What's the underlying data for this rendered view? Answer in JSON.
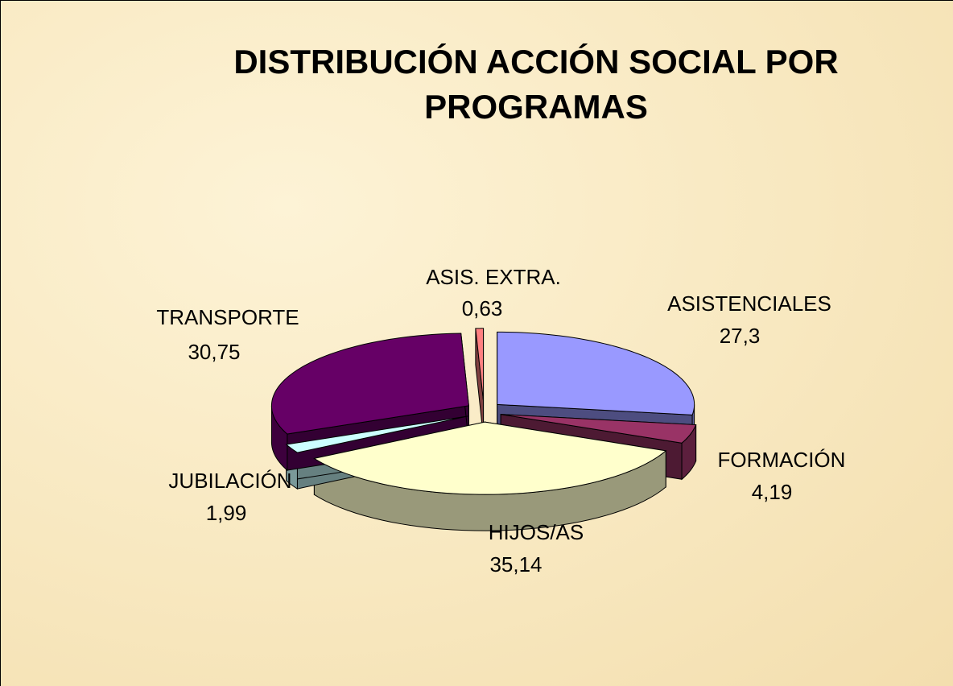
{
  "chart_data": {
    "type": "pie",
    "title": "DISTRIBUCIÓN ACCIÓN SOCIAL POR PROGRAMAS",
    "categories": [
      "ASISTENCIALES",
      "FORMACIÓN",
      "HIJOS/AS",
      "JUBILACIÓN",
      "TRANSPORTE",
      "ASIS. EXTRA."
    ],
    "values": [
      27.3,
      4.19,
      35.14,
      1.99,
      30.75,
      0.63
    ],
    "value_labels": [
      "27,3",
      "4,19",
      "35,14",
      "1,99",
      "30,75",
      "0,63"
    ],
    "colors": [
      "#9999ff",
      "#993366",
      "#ffffcc",
      "#ccffff",
      "#660066",
      "#ff8080"
    ]
  }
}
